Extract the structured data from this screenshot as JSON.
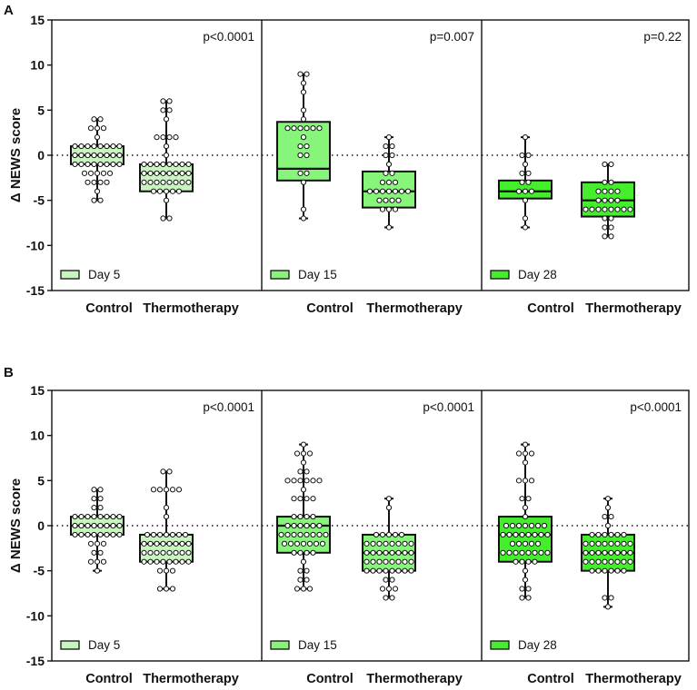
{
  "colors": {
    "day5": "#c8f5bf",
    "day15": "#86f57a",
    "day28": "#45ee2d",
    "axis": "#111111"
  },
  "chart_data": [
    {
      "type": "box",
      "panel_label": "A",
      "ylabel": "Δ NEWS score",
      "ylim": [
        -15,
        15
      ],
      "yticks": [
        -15,
        -10,
        -5,
        0,
        5,
        10,
        15
      ],
      "reference_line": 0,
      "groups": [
        {
          "legend": "Day 5",
          "color_key": "day5",
          "pvalue": "p<0.0001",
          "boxes": [
            {
              "category": "Control",
              "min": -5,
              "q1": -1,
              "median": 0,
              "q3": 1,
              "max": 4,
              "n_points": 54
            },
            {
              "category": "Thermotherapy",
              "min": -7,
              "q1": -4,
              "median": -2,
              "q3": -1,
              "max": 6,
              "n_points": 54
            }
          ]
        },
        {
          "legend": "Day 15",
          "color_key": "day15",
          "pvalue": "p=0.007",
          "boxes": [
            {
              "category": "Control",
              "min": -7,
              "q1": -2.8,
              "median": -1.5,
              "q3": 3.7,
              "max": 9,
              "n_points": 20
            },
            {
              "category": "Thermotherapy",
              "min": -8,
              "q1": -5.8,
              "median": -4,
              "q3": -1.8,
              "max": 2,
              "n_points": 24
            }
          ]
        },
        {
          "legend": "Day 28",
          "color_key": "day28",
          "pvalue": "p=0.22",
          "boxes": [
            {
              "category": "Control",
              "min": -8,
              "q1": -4.8,
              "median": -4,
              "q3": -2.8,
              "max": 2,
              "n_points": 12
            },
            {
              "category": "Thermotherapy",
              "min": -9,
              "q1": -6.8,
              "median": -5,
              "q3": -3,
              "max": -1,
              "n_points": 24
            }
          ]
        }
      ]
    },
    {
      "type": "box",
      "panel_label": "B",
      "ylabel": "Δ NEWS score",
      "ylim": [
        -15,
        15
      ],
      "yticks": [
        -15,
        -10,
        -5,
        0,
        5,
        10,
        15
      ],
      "reference_line": 0,
      "groups": [
        {
          "legend": "Day 5",
          "color_key": "day5",
          "pvalue": "p<0.0001",
          "boxes": [
            {
              "category": "Control",
              "min": -5,
              "q1": -1,
              "median": 0,
              "q3": 1,
              "max": 4,
              "n_points": 54
            },
            {
              "category": "Thermotherapy",
              "min": -7,
              "q1": -4,
              "median": -2,
              "q3": -1,
              "max": 6,
              "n_points": 54
            }
          ]
        },
        {
          "legend": "Day 15",
          "color_key": "day15",
          "pvalue": "p<0.0001",
          "boxes": [
            {
              "category": "Control",
              "min": -7,
              "q1": -3,
              "median": 0,
              "q3": 1,
              "max": 9,
              "n_points": 54
            },
            {
              "category": "Thermotherapy",
              "min": -8,
              "q1": -5,
              "median": -3,
              "q3": -1,
              "max": 3,
              "n_points": 54
            }
          ]
        },
        {
          "legend": "Day 28",
          "color_key": "day28",
          "pvalue": "p<0.0001",
          "boxes": [
            {
              "category": "Control",
              "min": -8,
              "q1": -4,
              "median": -1,
              "q3": 1,
              "max": 9,
              "n_points": 54
            },
            {
              "category": "Thermotherapy",
              "min": -9,
              "q1": -5,
              "median": -3,
              "q3": -1,
              "max": 3,
              "n_points": 54
            }
          ]
        }
      ]
    }
  ]
}
